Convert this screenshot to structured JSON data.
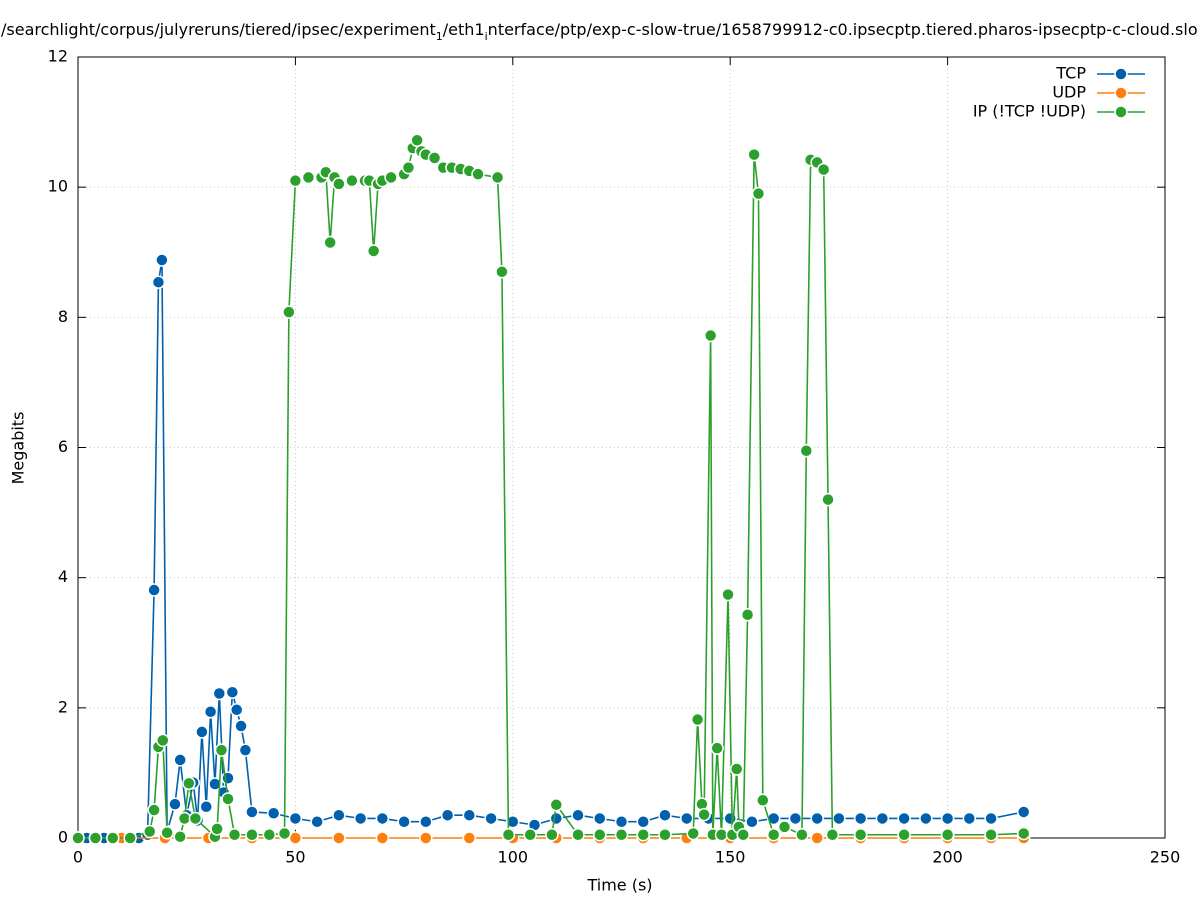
{
  "chart_data": {
    "type": "line",
    "title": [
      "/searchlight/corpus/julyreruns/tiered/ipsec/experiment",
      "1",
      "/eth1",
      "i",
      "nterface/ptp/exp-c-slow-true/1658799912-c0.ipsecptp.tiered.pharos-ipsecptp-c-cloud.slo"
    ],
    "xlabel": "Time (s)",
    "ylabel": "Megabits",
    "xlim": [
      0,
      250
    ],
    "xticks": [
      0,
      50,
      100,
      150,
      200,
      250
    ],
    "ylim": [
      0,
      12
    ],
    "yticks": [
      0,
      2,
      4,
      6,
      8,
      10,
      12
    ],
    "grid": true,
    "legend": "top-right",
    "series": [
      {
        "name": "TCP",
        "color": "#0060ad",
        "x": [
          0,
          2,
          4,
          6,
          8,
          10,
          12,
          14,
          16,
          17.5,
          18.5,
          19.3,
          20.5,
          22.3,
          23.5,
          25,
          26.5,
          27.5,
          28.5,
          29.5,
          30.5,
          31.5,
          32.5,
          33.5,
          34.5,
          35.5,
          36.5,
          37.5,
          38.5,
          40,
          45,
          50,
          55,
          60,
          65,
          70,
          75,
          80,
          85,
          90,
          95,
          100,
          105,
          110,
          115,
          120,
          125,
          130,
          135,
          140,
          145,
          150,
          155,
          160,
          165,
          170,
          175,
          180,
          185,
          190,
          195,
          200,
          205,
          210,
          217.5
        ],
        "values": [
          0,
          0,
          0,
          0,
          0,
          0,
          0,
          0,
          0.05,
          3.81,
          8.54,
          8.88,
          0.1,
          0.52,
          1.2,
          0.35,
          0.85,
          0.27,
          1.63,
          0.48,
          1.94,
          0.83,
          2.22,
          0.7,
          0.92,
          2.24,
          1.97,
          1.72,
          1.35,
          0.4,
          0.38,
          0.3,
          0.25,
          0.35,
          0.3,
          0.3,
          0.25,
          0.25,
          0.35,
          0.35,
          0.3,
          0.25,
          0.2,
          0.3,
          0.35,
          0.3,
          0.25,
          0.25,
          0.35,
          0.3,
          0.3,
          0.3,
          0.25,
          0.3,
          0.3,
          0.3,
          0.3,
          0.3,
          0.3,
          0.3,
          0.3,
          0.3,
          0.3,
          0.3,
          0.4
        ]
      },
      {
        "name": "UDP",
        "color": "#ff7f0e",
        "x": [
          0,
          10,
          20,
          30,
          40,
          50,
          60,
          70,
          80,
          90,
          100,
          110,
          120,
          130,
          140,
          150,
          160,
          170,
          180,
          190,
          200,
          210,
          217.5
        ],
        "values": [
          0,
          0,
          0,
          0,
          0,
          0,
          0,
          0,
          0,
          0,
          0,
          0,
          0,
          0,
          0,
          0,
          0,
          0,
          0,
          0,
          0,
          0,
          0
        ]
      },
      {
        "name": "IP (!TCP  !UDP)",
        "color": "#2ca02c",
        "x": [
          0,
          4,
          8,
          12,
          16.5,
          17.5,
          18.5,
          19.5,
          20.5,
          23.5,
          24.5,
          25.5,
          27,
          31.5,
          32,
          33,
          34.5,
          36,
          40,
          44,
          47.5,
          48.5,
          50,
          53,
          56,
          57,
          58,
          59,
          60,
          63,
          66,
          67,
          68,
          69,
          70,
          72,
          75,
          76,
          77,
          78,
          79,
          80,
          82,
          84,
          86,
          88,
          90,
          92,
          96.5,
          97.5,
          99,
          104,
          109,
          110,
          115,
          120,
          125,
          130,
          135,
          141.5,
          142.5,
          143.5,
          144,
          145.5,
          146,
          147,
          148,
          149.5,
          150.5,
          151.5,
          152,
          153,
          154,
          155.5,
          156.5,
          157.5,
          160,
          162.5,
          166.5,
          167.5,
          168.5,
          170,
          171.5,
          172.5,
          173.5,
          180,
          190,
          200,
          210,
          217.5
        ],
        "values": [
          0,
          0,
          0,
          0,
          0.1,
          0.43,
          1.4,
          1.5,
          0.08,
          0.02,
          0.3,
          0.84,
          0.3,
          0.02,
          0.14,
          1.35,
          0.6,
          0.05,
          0.05,
          0.05,
          0.07,
          8.08,
          10.1,
          10.15,
          10.15,
          10.23,
          9.15,
          10.15,
          10.05,
          10.1,
          10.1,
          10.1,
          9.02,
          10.05,
          10.1,
          10.15,
          10.2,
          10.3,
          10.6,
          10.72,
          10.55,
          10.5,
          10.45,
          10.3,
          10.3,
          10.28,
          10.25,
          10.2,
          10.15,
          8.7,
          0.05,
          0.05,
          0.05,
          0.51,
          0.05,
          0.05,
          0.05,
          0.05,
          0.05,
          0.07,
          1.82,
          0.52,
          0.36,
          7.72,
          0.05,
          1.38,
          0.05,
          3.74,
          0.05,
          1.06,
          0.17,
          0.05,
          3.43,
          10.5,
          9.9,
          0.58,
          0.05,
          0.17,
          0.05,
          5.95,
          10.42,
          10.38,
          10.27,
          5.2,
          0.05,
          0.05,
          0.05,
          0.05,
          0.05,
          0.07
        ]
      }
    ]
  }
}
